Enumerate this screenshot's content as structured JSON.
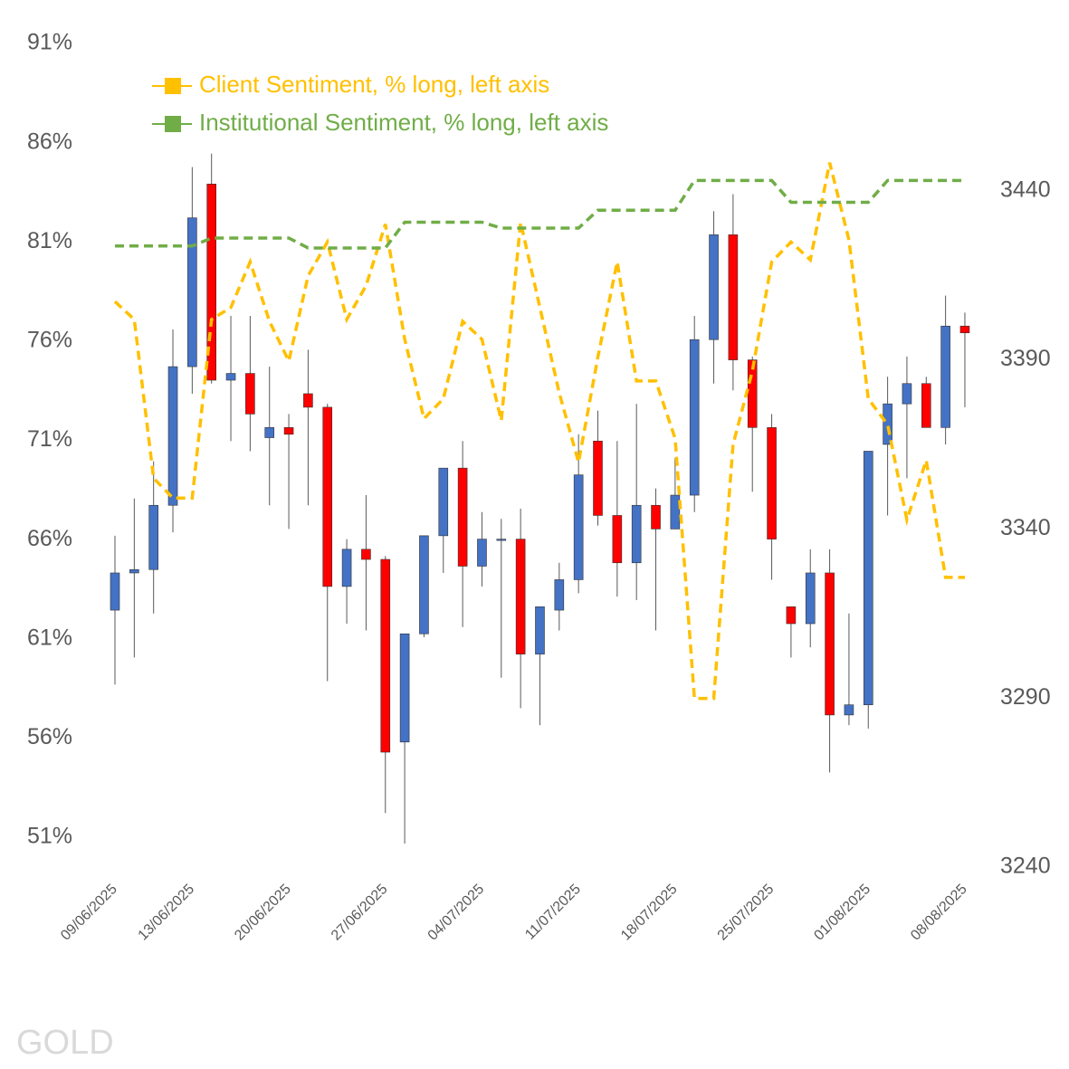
{
  "chart_data": {
    "type": "candlestick",
    "watermark": "GOLD",
    "categories": [
      "09/06/2025",
      null,
      null,
      null,
      "13/06/2025",
      null,
      null,
      null,
      null,
      "20/06/2025",
      null,
      null,
      null,
      null,
      "27/06/2025",
      null,
      null,
      null,
      null,
      "04/07/2025",
      null,
      null,
      null,
      null,
      "11/07/2025",
      null,
      null,
      null,
      null,
      "18/07/2025",
      null,
      null,
      null,
      null,
      "25/07/2025",
      null,
      null,
      null,
      null,
      "01/08/2025",
      null,
      null,
      null,
      null,
      "08/08/2025"
    ],
    "ylim": [
      49.5,
      92.1
    ],
    "yticks": [
      {
        "value": 51,
        "label": "51%"
      },
      {
        "value": 56,
        "label": "56%"
      },
      {
        "value": 61,
        "label": "61%"
      },
      {
        "value": 66,
        "label": "66%"
      },
      {
        "value": 71,
        "label": "71%"
      },
      {
        "value": 76,
        "label": "76%"
      },
      {
        "value": 81,
        "label": "81%"
      },
      {
        "value": 86,
        "label": "86%"
      },
      {
        "value": 91,
        "label": "91%"
      }
    ],
    "y2lim": [
      3240,
      3490
    ],
    "y2ticks": [
      3240,
      3290,
      3340,
      3390,
      3440
    ],
    "legend": "upper left",
    "series": [
      {
        "name": "Client Sentiment, % long, left axis",
        "color": "#ffc000",
        "dashed": true,
        "values": [
          78.0,
          77.1,
          69.1,
          68.1,
          68.1,
          77.1,
          77.7,
          80.0,
          77.0,
          75.0,
          79.3,
          81.0,
          77.1,
          78.8,
          81.9,
          76.1,
          72.1,
          73.1,
          77.0,
          76.1,
          72.0,
          82.0,
          77.7,
          73.4,
          69.9,
          75.2,
          80.0,
          74.0,
          74.0,
          71.1,
          58.0,
          58.0,
          70.8,
          74.5,
          80.0,
          81.0,
          80.1,
          85.0,
          81.1,
          73.1,
          71.8,
          67.0,
          70.0,
          64.1,
          64.1
        ]
      },
      {
        "name": "Institutional Sentiment, % long, left axis",
        "color": "#70ad47",
        "dashed": true,
        "values": [
          80.8,
          80.8,
          80.8,
          80.8,
          80.8,
          81.2,
          81.2,
          81.2,
          81.2,
          81.2,
          80.7,
          80.7,
          80.7,
          80.7,
          80.7,
          82.0,
          82.0,
          82.0,
          82.0,
          82.0,
          81.7,
          81.7,
          81.7,
          81.7,
          81.7,
          82.6,
          82.6,
          82.6,
          82.6,
          82.6,
          84.1,
          84.1,
          84.1,
          84.1,
          84.1,
          83.0,
          83.0,
          83.0,
          83.0,
          83.0,
          84.1,
          84.1,
          84.1,
          84.1,
          84.1
        ]
      }
    ],
    "ohlc": {
      "axis": "y2",
      "up_color": "#4472c4",
      "down_color": "#ff0000",
      "open": [
        3316,
        3327,
        3328,
        3347,
        3388,
        3442,
        3384,
        3386,
        3367,
        3370,
        3380,
        3376,
        3323,
        3334,
        3331,
        3277,
        3309,
        3338,
        3358,
        3329,
        3337,
        3337,
        3303,
        3316,
        3325,
        3366,
        3344,
        3330,
        3347,
        3340,
        3350,
        3396,
        3427,
        3390,
        3370,
        3317,
        3312,
        3327,
        3285,
        3288,
        3365,
        3377,
        3383,
        3370,
        3400
      ],
      "high": [
        3338,
        3349,
        3360,
        3399,
        3447,
        3451,
        3403,
        3403,
        3388,
        3374,
        3393,
        3377,
        3337,
        3350,
        3332,
        3309,
        3338,
        3358,
        3366,
        3345,
        3343,
        3346,
        3317,
        3330,
        3368,
        3375,
        3366,
        3377,
        3352,
        3361,
        3403,
        3434,
        3439,
        3391,
        3374,
        3317,
        3334,
        3334,
        3315,
        3363,
        3385,
        3391,
        3385,
        3409,
        3404
      ],
      "low": [
        3294,
        3302,
        3315,
        3339,
        3380,
        3383,
        3366,
        3363,
        3347,
        3340,
        3347,
        3295,
        3312,
        3310,
        3256,
        3247,
        3308,
        3327,
        3311,
        3323,
        3296,
        3287,
        3282,
        3310,
        3321,
        3341,
        3320,
        3319,
        3310,
        3340,
        3345,
        3383,
        3381,
        3351,
        3325,
        3302,
        3305,
        3268,
        3282,
        3281,
        3344,
        3355,
        3373,
        3365,
        3376
      ],
      "close": [
        3327,
        3328,
        3347,
        3388,
        3432,
        3384,
        3386,
        3374,
        3370,
        3368,
        3376,
        3323,
        3334,
        3331,
        3274,
        3309,
        3338,
        3358,
        3329,
        3337,
        3337,
        3303,
        3317,
        3325,
        3356,
        3344,
        3330,
        3347,
        3340,
        3350,
        3396,
        3427,
        3390,
        3370,
        3337,
        3312,
        3327,
        3285,
        3288,
        3363,
        3377,
        3383,
        3370,
        3400,
        3398
      ]
    }
  }
}
